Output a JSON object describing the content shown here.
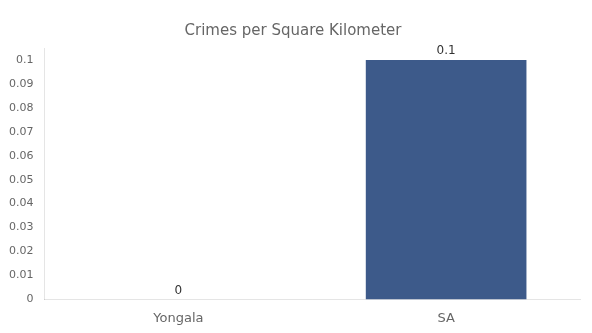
{
  "chart_data": {
    "type": "bar",
    "title": "Crimes per Square Kilometer",
    "categories": [
      "Yongala",
      "SA"
    ],
    "values": [
      0,
      0.1
    ],
    "color": "#3d5a8a",
    "ylim": [
      0,
      0.105
    ],
    "yticks": [
      0,
      0.01,
      0.02,
      0.03,
      0.04,
      0.05,
      0.06,
      0.07,
      0.08,
      0.09,
      0.1
    ],
    "grid": false,
    "data_labels": true
  }
}
